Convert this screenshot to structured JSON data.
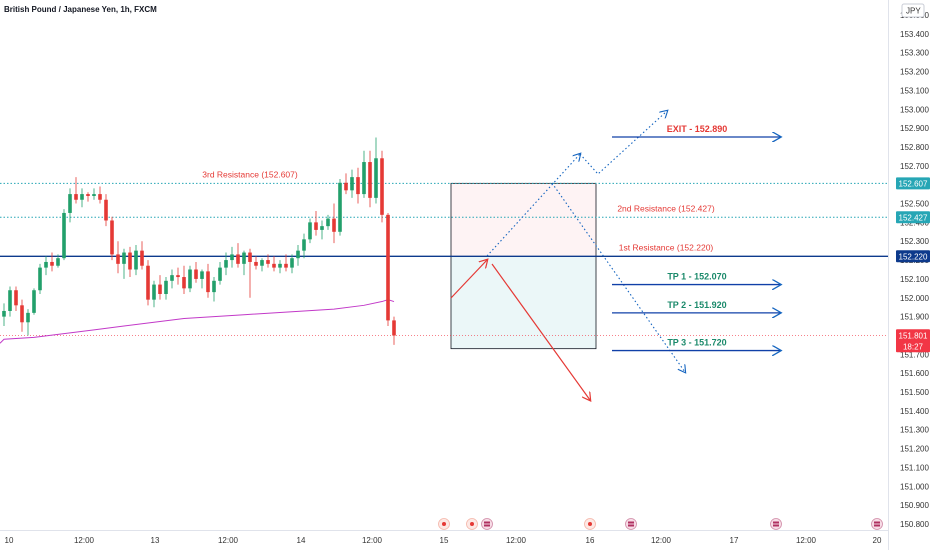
{
  "chart_data": {
    "type": "candlestick",
    "title": "British Pound / Japanese Yen, 1h, FXCM",
    "currency": "JPY",
    "y_ticks": [
      "153.500",
      "153.400",
      "153.300",
      "153.200",
      "153.100",
      "153.000",
      "152.900",
      "152.800",
      "152.700",
      "152.600",
      "152.500",
      "152.400",
      "152.300",
      "152.200",
      "152.100",
      "152.000",
      "151.900",
      "151.800",
      "151.700",
      "151.600",
      "151.500",
      "151.400",
      "151.300",
      "151.200",
      "151.100",
      "151.000",
      "150.900",
      "150.800"
    ],
    "ylim": [
      150.76,
      153.57
    ],
    "x_ticks": [
      "10",
      "12:00",
      "13",
      "12:00",
      "14",
      "12:00",
      "15",
      "12:00",
      "16",
      "12:00",
      "17",
      "12:00",
      "20"
    ],
    "price_badges": [
      {
        "label": "152.607",
        "value": 152.607,
        "color": "#26a6b5"
      },
      {
        "label": "152.427",
        "value": 152.427,
        "color": "#26a6b5"
      },
      {
        "label": "152.220",
        "value": 152.22,
        "color": "#0d3a8c"
      }
    ],
    "current_price": {
      "label": "151.801",
      "countdown": "18:27",
      "value": 151.801,
      "color": "#f23645"
    },
    "levels": [
      {
        "label": "3rd Resistance (152.607)",
        "value": 152.607,
        "style": "dotted",
        "color": "#26a6b5"
      },
      {
        "label": "2nd Resistance (152.427)",
        "value": 152.427,
        "style": "dotted",
        "color": "#26a6b5"
      },
      {
        "label": "1st Resistance (152.220)",
        "value": 152.22,
        "style": "solid",
        "color": "#0d3a8c"
      }
    ],
    "targets": [
      {
        "label": "EXIT - 152.890",
        "value": 152.89,
        "color": "#e53935"
      },
      {
        "label": "TP 1 - 152.070",
        "value": 152.07,
        "color": "#1b8a6b"
      },
      {
        "label": "TP 2 - 151.920",
        "value": 151.92,
        "color": "#1b8a6b"
      },
      {
        "label": "TP 3 - 151.720",
        "value": 151.72,
        "color": "#1b8a6b"
      }
    ],
    "position_box": {
      "stop_top": 152.607,
      "entry": 152.22,
      "target_bottom": 151.73
    },
    "candles": [
      [
        151.9,
        151.97,
        151.85,
        151.93
      ],
      [
        151.93,
        152.06,
        151.9,
        152.04
      ],
      [
        152.04,
        152.06,
        151.93,
        151.96
      ],
      [
        151.96,
        151.99,
        151.82,
        151.87
      ],
      [
        151.87,
        151.94,
        151.8,
        151.92
      ],
      [
        151.92,
        152.05,
        151.91,
        152.04
      ],
      [
        152.04,
        152.18,
        152.02,
        152.16
      ],
      [
        152.16,
        152.22,
        152.12,
        152.19
      ],
      [
        152.19,
        152.24,
        152.14,
        152.17
      ],
      [
        152.17,
        152.23,
        152.16,
        152.21
      ],
      [
        152.21,
        152.47,
        152.2,
        152.45
      ],
      [
        152.45,
        152.58,
        152.4,
        152.55
      ],
      [
        152.55,
        152.64,
        152.5,
        152.52
      ],
      [
        152.52,
        152.58,
        152.48,
        152.55
      ],
      [
        152.55,
        152.56,
        152.51,
        152.54
      ],
      [
        152.54,
        152.58,
        152.52,
        152.55
      ],
      [
        152.55,
        152.59,
        152.5,
        152.52
      ],
      [
        152.52,
        152.55,
        152.38,
        152.41
      ],
      [
        152.41,
        152.43,
        152.2,
        152.23
      ],
      [
        152.23,
        152.3,
        152.13,
        152.18
      ],
      [
        152.18,
        152.26,
        152.1,
        152.24
      ],
      [
        152.24,
        152.27,
        152.11,
        152.15
      ],
      [
        152.15,
        152.28,
        152.12,
        152.25
      ],
      [
        152.25,
        152.3,
        152.15,
        152.17
      ],
      [
        152.17,
        152.2,
        151.96,
        151.99
      ],
      [
        151.99,
        152.09,
        151.95,
        152.07
      ],
      [
        152.07,
        152.12,
        151.99,
        152.02
      ],
      [
        152.02,
        152.11,
        151.99,
        152.09
      ],
      [
        152.09,
        152.15,
        152.05,
        152.12
      ],
      [
        152.12,
        152.16,
        152.07,
        152.11
      ],
      [
        152.11,
        152.17,
        152.02,
        152.05
      ],
      [
        152.05,
        152.17,
        152.03,
        152.15
      ],
      [
        152.15,
        152.19,
        152.08,
        152.1
      ],
      [
        152.1,
        152.15,
        152.05,
        152.14
      ],
      [
        152.14,
        152.18,
        152.0,
        152.03
      ],
      [
        152.03,
        152.11,
        151.98,
        152.09
      ],
      [
        152.09,
        152.19,
        152.07,
        152.16
      ],
      [
        152.16,
        152.24,
        152.12,
        152.2
      ],
      [
        152.2,
        152.27,
        152.16,
        152.23
      ],
      [
        152.23,
        152.29,
        152.16,
        152.18
      ],
      [
        152.18,
        152.25,
        152.12,
        152.24
      ],
      [
        152.24,
        152.26,
        152.0,
        152.19
      ],
      [
        152.19,
        152.22,
        152.15,
        152.17
      ],
      [
        152.17,
        152.21,
        152.14,
        152.2
      ],
      [
        152.2,
        152.23,
        152.16,
        152.18
      ],
      [
        152.18,
        152.22,
        152.14,
        152.16
      ],
      [
        152.16,
        152.2,
        152.13,
        152.18
      ],
      [
        152.18,
        152.23,
        152.14,
        152.16
      ],
      [
        152.16,
        152.23,
        152.13,
        152.21
      ],
      [
        152.21,
        152.28,
        152.17,
        152.25
      ],
      [
        152.25,
        152.34,
        152.21,
        152.31
      ],
      [
        152.31,
        152.42,
        152.29,
        152.4
      ],
      [
        152.4,
        152.46,
        152.33,
        152.36
      ],
      [
        152.36,
        152.41,
        152.31,
        152.38
      ],
      [
        152.38,
        152.44,
        152.36,
        152.42
      ],
      [
        152.42,
        152.5,
        152.29,
        152.35
      ],
      [
        152.35,
        152.63,
        152.33,
        152.61
      ],
      [
        152.61,
        152.66,
        152.55,
        152.57
      ],
      [
        152.57,
        152.68,
        152.53,
        152.64
      ],
      [
        152.64,
        152.69,
        152.5,
        152.55
      ],
      [
        152.55,
        152.78,
        152.53,
        152.72
      ],
      [
        152.72,
        152.78,
        152.48,
        152.53
      ],
      [
        152.53,
        152.85,
        152.5,
        152.74
      ],
      [
        152.74,
        152.78,
        152.4,
        152.44
      ],
      [
        152.44,
        152.45,
        151.85,
        151.88
      ],
      [
        151.88,
        151.9,
        151.75,
        151.8
      ]
    ],
    "ma_line": [
      [
        0,
        151.78
      ],
      [
        5,
        151.79
      ],
      [
        10,
        151.81
      ],
      [
        15,
        151.83
      ],
      [
        20,
        151.85
      ],
      [
        25,
        151.87
      ],
      [
        30,
        151.89
      ],
      [
        35,
        151.9
      ],
      [
        40,
        151.91
      ],
      [
        45,
        151.92
      ],
      [
        50,
        151.93
      ],
      [
        55,
        151.94
      ],
      [
        60,
        151.96
      ],
      [
        63,
        151.98
      ],
      [
        64,
        151.99
      ],
      [
        65,
        151.98
      ]
    ],
    "event_markers": [
      {
        "x_label": "15",
        "kind": "dot"
      },
      {
        "x_label": "15",
        "kind": "dot"
      },
      {
        "x_label": "15",
        "kind": "flag"
      },
      {
        "x_label": "16",
        "kind": "dot"
      },
      {
        "x_label": "16",
        "kind": "flag"
      },
      {
        "x_label": "17",
        "kind": "flag"
      },
      {
        "x_label": "20",
        "kind": "flag"
      }
    ]
  }
}
